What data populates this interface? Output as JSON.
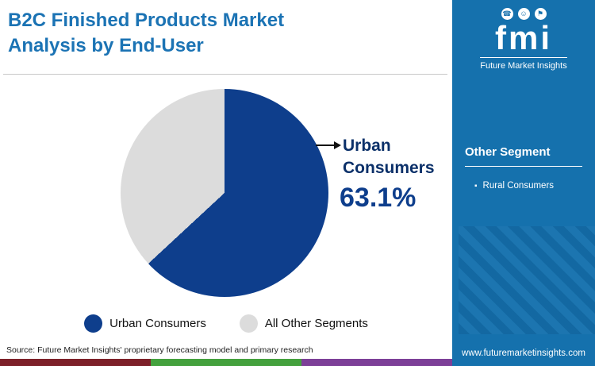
{
  "header": {
    "title_line1": "B2C Finished Products Market",
    "title_line2": "Analysis by End-User"
  },
  "chart_data": {
    "type": "pie",
    "title": "B2C Finished Products Market Analysis by End-User",
    "labels": [
      "Urban Consumers",
      "All Other Segments"
    ],
    "values": [
      63.1,
      36.9
    ],
    "colors": [
      "#0e3e8c",
      "#dcdcdc"
    ],
    "legend_position": "bottom",
    "callout": {
      "label": "Urban Consumers",
      "value": "63.1%"
    }
  },
  "legend": [
    {
      "label": "Urban Consumers",
      "color": "#0e3e8c"
    },
    {
      "label": "All Other Segments",
      "color": "#dcdcdc"
    }
  ],
  "source": "Source: Future Market Insights' proprietary forecasting model and primary research",
  "sidebar": {
    "background": "#1571ad",
    "brand": {
      "logo_text": "fmi",
      "name": "Future Market Insights",
      "icons": [
        "☎",
        "☺",
        "⚑"
      ]
    },
    "section_title": "Other Segment",
    "items": [
      "Rural Consumers"
    ],
    "website": "www.futuremarketinsights.com"
  },
  "footer_strip_colors": [
    "#7d2029",
    "#44a13d",
    "#7d3f98"
  ]
}
